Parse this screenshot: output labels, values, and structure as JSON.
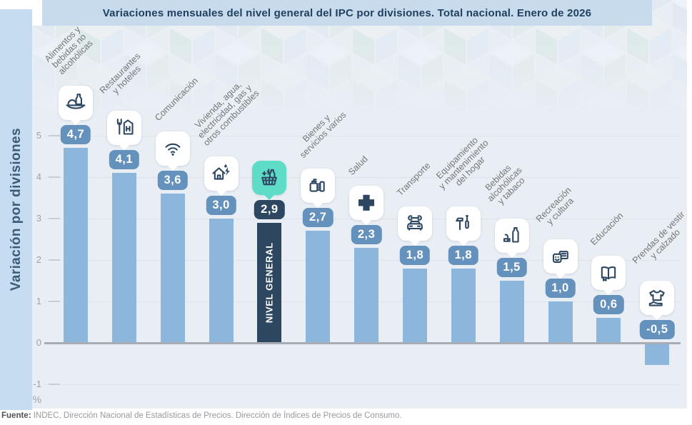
{
  "title_bar": {
    "text": "Variaciones mensuales del nivel general del IPC por divisiones. Total nacional. Enero de 2026"
  },
  "y_axis": {
    "title": "Variación por divisiones",
    "unit": "%",
    "ticks": [
      "5",
      "4",
      "3",
      "2",
      "1",
      "0",
      "-1"
    ]
  },
  "footer": {
    "label": "Fuente:",
    "text": " INDEC, Dirección Nacional de Estadísticas de Precios. Dirección de Índices de Precios de Consumo."
  },
  "colors": {
    "title_bg": "#c7dbed",
    "band_bg": "#c6dcf0",
    "chart_bg": "#e9eef5",
    "bar": "#8db6dd",
    "badge": "#6591bd",
    "highlight": "#2e4761",
    "highlight_icon_bg": "#5fdcc8",
    "icon_stroke": "#2e4761"
  },
  "chart_data": {
    "type": "bar",
    "title": "Variaciones mensuales del nivel general del IPC por divisiones. Total nacional. Enero de 2026",
    "xlabel": "",
    "ylabel": "Variación por divisiones",
    "unit": "%",
    "ylim": [
      -1,
      5
    ],
    "yticks": [
      5,
      4,
      3,
      2,
      1,
      0,
      -1
    ],
    "grid": true,
    "highlight_category": "NIVEL GENERAL",
    "items": [
      {
        "category": "Alimentos y bebidas no alcohólicas",
        "label": "Alimentos y\nbebidas no\nalcohólicas",
        "value": 4.7,
        "display": "4,7",
        "icon": "food-bottle-icon",
        "highlight": false
      },
      {
        "category": "Restaurantes y hoteles",
        "label": "Restaurantes\ny hoteles",
        "value": 4.1,
        "display": "4,1",
        "icon": "restaurant-hotel-icon",
        "highlight": false
      },
      {
        "category": "Comunicación",
        "label": "Comunicación",
        "value": 3.6,
        "display": "3,6",
        "icon": "wifi-icon",
        "highlight": false
      },
      {
        "category": "Vivienda, agua, electricidad, gas y otros combustibles",
        "label": "Vivienda, agua,\nelectricidad, gas y\notros combustibles",
        "value": 3.0,
        "display": "3,0",
        "icon": "house-energy-icon",
        "highlight": false
      },
      {
        "category": "NIVEL GENERAL",
        "label": "",
        "bar_label": "NIVEL GENERAL",
        "value": 2.9,
        "display": "2,9",
        "icon": "shopping-basket-icon",
        "highlight": true
      },
      {
        "category": "Bienes y servicios varios",
        "label": "Bienes y\nservicios varios",
        "value": 2.7,
        "display": "2,7",
        "icon": "toiletries-icon",
        "highlight": false
      },
      {
        "category": "Salud",
        "label": "Salud",
        "value": 2.3,
        "display": "2,3",
        "icon": "health-cross-icon",
        "highlight": false
      },
      {
        "category": "Transporte",
        "label": "Transporte",
        "value": 1.8,
        "display": "1,8",
        "icon": "car-wrench-icon",
        "highlight": false
      },
      {
        "category": "Equipamiento y mantenimiento del hogar",
        "label": "Equipamiento\ny mantenimiento\ndel hogar",
        "value": 1.8,
        "display": "1,8",
        "icon": "tools-icon",
        "highlight": false
      },
      {
        "category": "Bebidas alcohólicas y tabaco",
        "label": "Bebidas\nalcohólicas\ny tabaco",
        "value": 1.5,
        "display": "1,5",
        "icon": "bottle-tobacco-icon",
        "highlight": false
      },
      {
        "category": "Recreación y cultura",
        "label": "Recreación\ny cultura",
        "value": 1.0,
        "display": "1,0",
        "icon": "masks-news-icon",
        "highlight": false
      },
      {
        "category": "Educación",
        "label": "Educación",
        "value": 0.6,
        "display": "0,6",
        "icon": "open-book-icon",
        "highlight": false
      },
      {
        "category": "Prendas de vestir y calzado",
        "label": "Prendas de vestir\ny calzado",
        "value": -0.5,
        "display": "-0,5",
        "icon": "tshirt-shoe-icon",
        "highlight": false
      }
    ]
  }
}
